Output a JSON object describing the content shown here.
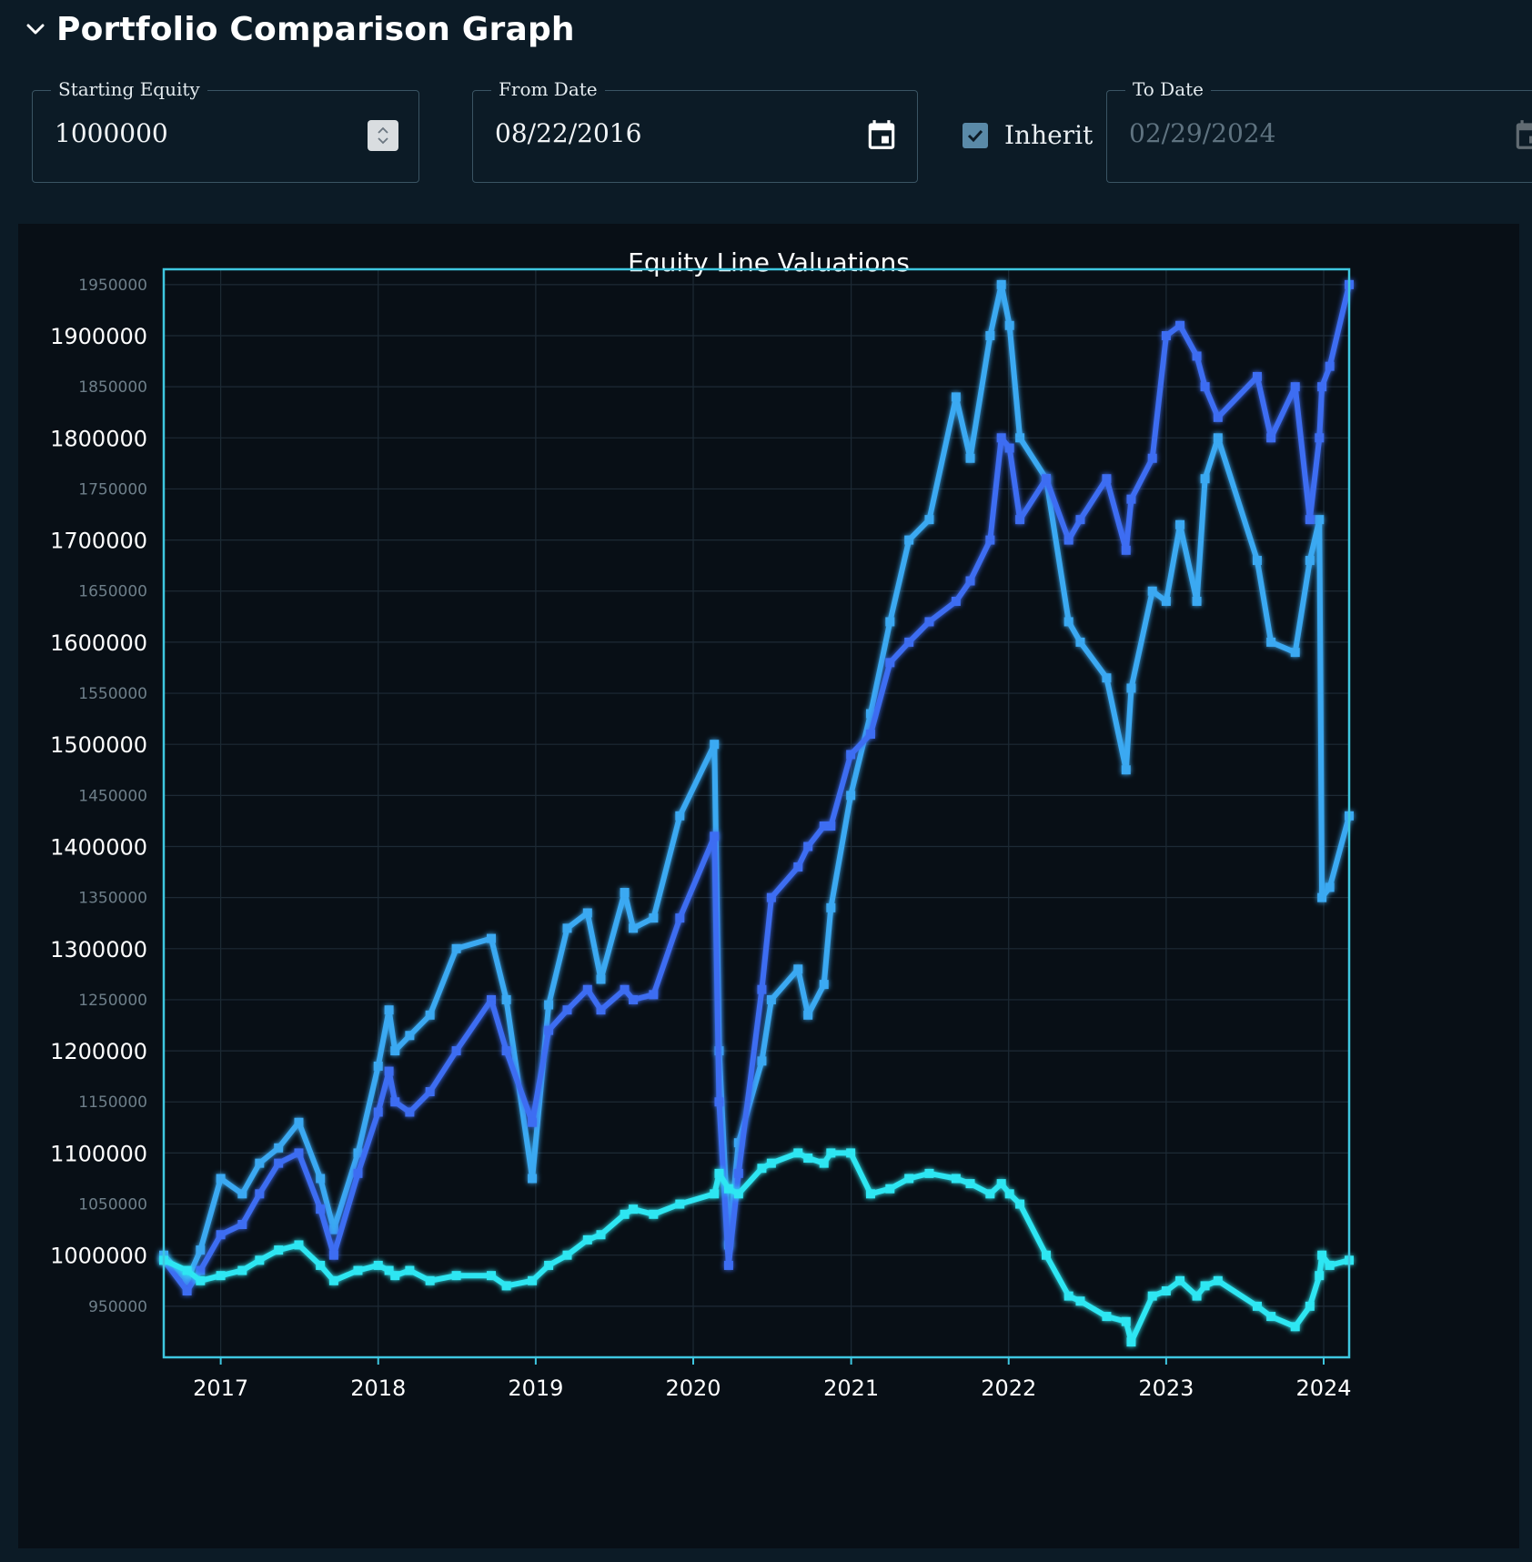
{
  "header": {
    "title": "Portfolio Comparison Graph"
  },
  "controls": {
    "starting_equity": {
      "label": "Starting Equity",
      "value": "1000000"
    },
    "from_date": {
      "label": "From Date",
      "value": "08/22/2016"
    },
    "inherit": {
      "label": "Inherit",
      "checked": true
    },
    "to_date": {
      "label": "To Date",
      "value": "02/29/2024",
      "disabled": true
    }
  },
  "colors": {
    "background": "#0c1b26",
    "plot_background": "#080f16",
    "axis": "#3ec7e0",
    "series_light_blue": "#3aa9f2",
    "series_blue": "#3d6df2",
    "series_cyan": "#2de6f2"
  },
  "chart_data": {
    "type": "line",
    "title": "Equity Line Valuations",
    "xlabel": "",
    "ylabel": "",
    "x_ticks": [
      "2017",
      "2018",
      "2019",
      "2020",
      "2021",
      "2022",
      "2023",
      "2024"
    ],
    "xlim": [
      "2016-08-22",
      "2024-02-29"
    ],
    "ylim": [
      900000,
      1965000
    ],
    "y_ticks_major": [
      1000000,
      1100000,
      1200000,
      1300000,
      1400000,
      1500000,
      1600000,
      1700000,
      1800000,
      1900000
    ],
    "y_ticks_minor": [
      950000,
      1050000,
      1150000,
      1250000,
      1350000,
      1450000,
      1550000,
      1650000,
      1750000,
      1850000,
      1950000
    ],
    "grid": true,
    "legend": "none",
    "series": [
      {
        "color": "#3aa9f2",
        "x": [
          "2016-08-22",
          "2016-10-15",
          "2016-11-15",
          "2017-01-01",
          "2017-02-20",
          "2017-04-01",
          "2017-05-15",
          "2017-07-01",
          "2017-08-20",
          "2017-09-20",
          "2017-11-15",
          "2018-01-01",
          "2018-01-26",
          "2018-02-09",
          "2018-03-15",
          "2018-05-01",
          "2018-07-01",
          "2018-09-20",
          "2018-10-25",
          "2018-12-24",
          "2019-01-31",
          "2019-03-15",
          "2019-05-01",
          "2019-06-01",
          "2019-07-26",
          "2019-08-15",
          "2019-10-01",
          "2019-12-01",
          "2020-02-19",
          "2020-03-01",
          "2020-03-23",
          "2020-04-15",
          "2020-06-08",
          "2020-06-30",
          "2020-08-31",
          "2020-09-23",
          "2020-10-30",
          "2020-11-15",
          "2020-12-31",
          "2021-02-15",
          "2021-04-01",
          "2021-05-15",
          "2021-07-01",
          "2021-09-01",
          "2021-10-04",
          "2021-11-19",
          "2021-12-15",
          "2022-01-03",
          "2022-01-27",
          "2022-03-29",
          "2022-05-20",
          "2022-06-16",
          "2022-08-16",
          "2022-09-30",
          "2022-10-12",
          "2022-11-30",
          "2023-01-01",
          "2023-02-02",
          "2023-03-13",
          "2023-04-01",
          "2023-05-01",
          "2023-07-31",
          "2023-09-01",
          "2023-10-27",
          "2023-11-30",
          "2023-12-22",
          "2023-12-28",
          "2024-01-15",
          "2024-02-29"
        ],
        "values": [
          1000000,
          975000,
          1005000,
          1075000,
          1060000,
          1090000,
          1105000,
          1130000,
          1075000,
          1025000,
          1100000,
          1185000,
          1240000,
          1200000,
          1215000,
          1235000,
          1300000,
          1310000,
          1250000,
          1075000,
          1245000,
          1320000,
          1335000,
          1270000,
          1355000,
          1320000,
          1330000,
          1430000,
          1500000,
          1200000,
          1010000,
          1110000,
          1190000,
          1250000,
          1280000,
          1235000,
          1265000,
          1340000,
          1450000,
          1530000,
          1620000,
          1700000,
          1720000,
          1840000,
          1780000,
          1900000,
          1950000,
          1910000,
          1800000,
          1760000,
          1620000,
          1600000,
          1565000,
          1475000,
          1555000,
          1650000,
          1640000,
          1715000,
          1640000,
          1760000,
          1800000,
          1680000,
          1600000,
          1590000,
          1680000,
          1720000,
          1350000,
          1360000,
          1430000
        ]
      },
      {
        "color": "#3d6df2",
        "x": [
          "2016-08-22",
          "2016-10-15",
          "2016-11-15",
          "2017-01-01",
          "2017-02-20",
          "2017-04-01",
          "2017-05-15",
          "2017-07-01",
          "2017-08-20",
          "2017-09-20",
          "2017-11-15",
          "2018-01-01",
          "2018-01-26",
          "2018-02-09",
          "2018-03-15",
          "2018-05-01",
          "2018-07-01",
          "2018-09-20",
          "2018-10-25",
          "2018-12-24",
          "2019-01-31",
          "2019-03-15",
          "2019-05-01",
          "2019-06-01",
          "2019-07-26",
          "2019-08-15",
          "2019-10-01",
          "2019-12-01",
          "2020-02-19",
          "2020-03-01",
          "2020-03-23",
          "2020-04-15",
          "2020-06-08",
          "2020-06-30",
          "2020-08-31",
          "2020-09-23",
          "2020-10-30",
          "2020-11-15",
          "2020-12-31",
          "2021-02-15",
          "2021-04-01",
          "2021-05-15",
          "2021-07-01",
          "2021-09-01",
          "2021-10-04",
          "2021-11-19",
          "2021-12-15",
          "2022-01-03",
          "2022-01-27",
          "2022-03-29",
          "2022-05-20",
          "2022-06-16",
          "2022-08-16",
          "2022-09-30",
          "2022-10-12",
          "2022-11-30",
          "2023-01-01",
          "2023-02-02",
          "2023-03-13",
          "2023-04-01",
          "2023-05-01",
          "2023-07-31",
          "2023-09-01",
          "2023-10-27",
          "2023-11-30",
          "2023-12-22",
          "2023-12-28",
          "2024-01-15",
          "2024-02-29"
        ],
        "values": [
          995000,
          965000,
          985000,
          1020000,
          1030000,
          1060000,
          1090000,
          1100000,
          1045000,
          1000000,
          1080000,
          1140000,
          1180000,
          1150000,
          1140000,
          1160000,
          1200000,
          1250000,
          1200000,
          1130000,
          1220000,
          1240000,
          1260000,
          1240000,
          1260000,
          1250000,
          1255000,
          1330000,
          1410000,
          1150000,
          990000,
          1080000,
          1260000,
          1350000,
          1380000,
          1400000,
          1420000,
          1420000,
          1490000,
          1510000,
          1580000,
          1600000,
          1620000,
          1640000,
          1660000,
          1700000,
          1800000,
          1790000,
          1720000,
          1760000,
          1700000,
          1720000,
          1760000,
          1690000,
          1740000,
          1780000,
          1900000,
          1910000,
          1880000,
          1850000,
          1820000,
          1860000,
          1800000,
          1850000,
          1720000,
          1800000,
          1850000,
          1870000,
          1950000
        ]
      },
      {
        "color": "#2de6f2",
        "x": [
          "2016-08-22",
          "2016-10-15",
          "2016-11-15",
          "2017-01-01",
          "2017-02-20",
          "2017-04-01",
          "2017-05-15",
          "2017-07-01",
          "2017-08-20",
          "2017-09-20",
          "2017-11-15",
          "2018-01-01",
          "2018-01-26",
          "2018-02-09",
          "2018-03-15",
          "2018-05-01",
          "2018-07-01",
          "2018-09-20",
          "2018-10-25",
          "2018-12-24",
          "2019-01-31",
          "2019-03-15",
          "2019-05-01",
          "2019-06-01",
          "2019-07-26",
          "2019-08-15",
          "2019-10-01",
          "2019-12-01",
          "2020-02-19",
          "2020-03-01",
          "2020-03-23",
          "2020-04-15",
          "2020-06-08",
          "2020-06-30",
          "2020-08-31",
          "2020-09-23",
          "2020-10-30",
          "2020-11-15",
          "2020-12-31",
          "2021-02-15",
          "2021-04-01",
          "2021-05-15",
          "2021-07-01",
          "2021-09-01",
          "2021-10-04",
          "2021-11-19",
          "2021-12-15",
          "2022-01-03",
          "2022-01-27",
          "2022-03-29",
          "2022-05-20",
          "2022-06-16",
          "2022-08-16",
          "2022-09-30",
          "2022-10-12",
          "2022-11-30",
          "2023-01-01",
          "2023-02-02",
          "2023-03-13",
          "2023-04-01",
          "2023-05-01",
          "2023-07-31",
          "2023-09-01",
          "2023-10-27",
          "2023-11-30",
          "2023-12-22",
          "2023-12-28",
          "2024-01-15",
          "2024-02-29"
        ],
        "values": [
          995000,
          985000,
          975000,
          980000,
          985000,
          995000,
          1005000,
          1010000,
          990000,
          975000,
          985000,
          990000,
          985000,
          980000,
          985000,
          975000,
          980000,
          980000,
          970000,
          975000,
          990000,
          1000000,
          1015000,
          1020000,
          1040000,
          1045000,
          1040000,
          1050000,
          1060000,
          1080000,
          1065000,
          1060000,
          1085000,
          1090000,
          1100000,
          1095000,
          1090000,
          1100000,
          1100000,
          1060000,
          1065000,
          1075000,
          1080000,
          1075000,
          1070000,
          1060000,
          1070000,
          1060000,
          1050000,
          1000000,
          960000,
          955000,
          940000,
          935000,
          915000,
          960000,
          965000,
          975000,
          960000,
          970000,
          975000,
          950000,
          940000,
          930000,
          950000,
          980000,
          1000000,
          990000,
          995000
        ]
      }
    ]
  }
}
